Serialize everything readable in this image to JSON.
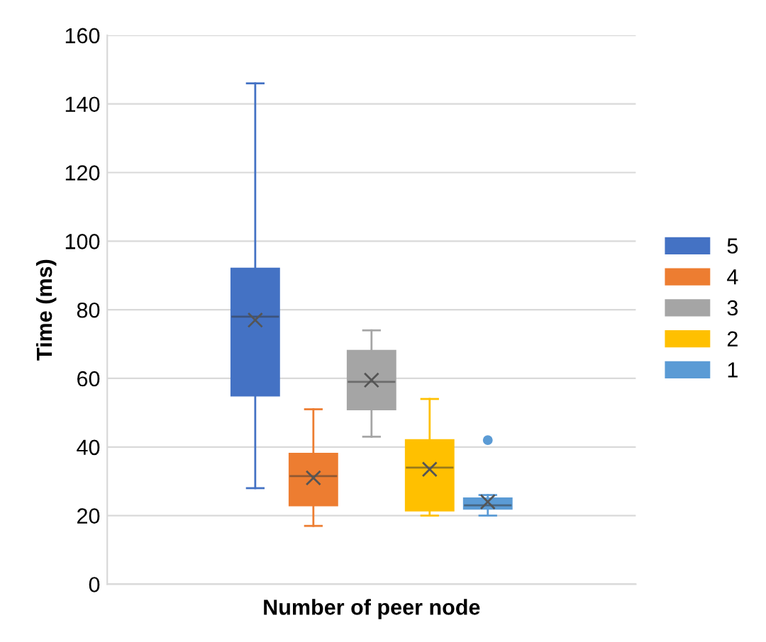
{
  "chart_data": {
    "type": "box",
    "xlabel": "Number of peer node",
    "ylabel": "Time (ms)",
    "categories": [
      null
    ],
    "series": [
      {
        "name": "5",
        "color": "#4472c4",
        "boxes": [
          {
            "low": 28,
            "q1": 55,
            "median": 78,
            "q3": 92,
            "high": 146,
            "mean": 77
          }
        ]
      },
      {
        "name": "4",
        "color": "#ed7d31",
        "boxes": [
          {
            "low": 17,
            "q1": 23,
            "median": 31.5,
            "q3": 38,
            "high": 51,
            "mean": 31
          }
        ]
      },
      {
        "name": "3",
        "color": "#a5a5a5",
        "boxes": [
          {
            "low": 43,
            "q1": 51,
            "median": 59,
            "q3": 68,
            "high": 74,
            "mean": 59.5
          }
        ]
      },
      {
        "name": "2",
        "color": "#ffc000",
        "boxes": [
          {
            "low": 20,
            "q1": 21.5,
            "median": 34,
            "q3": 42,
            "high": 54,
            "mean": 33.5
          }
        ]
      },
      {
        "name": "1",
        "color": "#5b9bd5",
        "boxes": [
          {
            "low": 20,
            "q1": 22,
            "median": 23,
            "q3": 25,
            "high": 26,
            "mean": 24,
            "outliers": [
              42
            ]
          }
        ]
      }
    ],
    "ylim": [
      0,
      160
    ],
    "yticks": [
      0,
      20,
      40,
      60,
      80,
      100,
      120,
      140,
      160
    ],
    "grid": "y",
    "legend": "right",
    "marker": "cross"
  }
}
